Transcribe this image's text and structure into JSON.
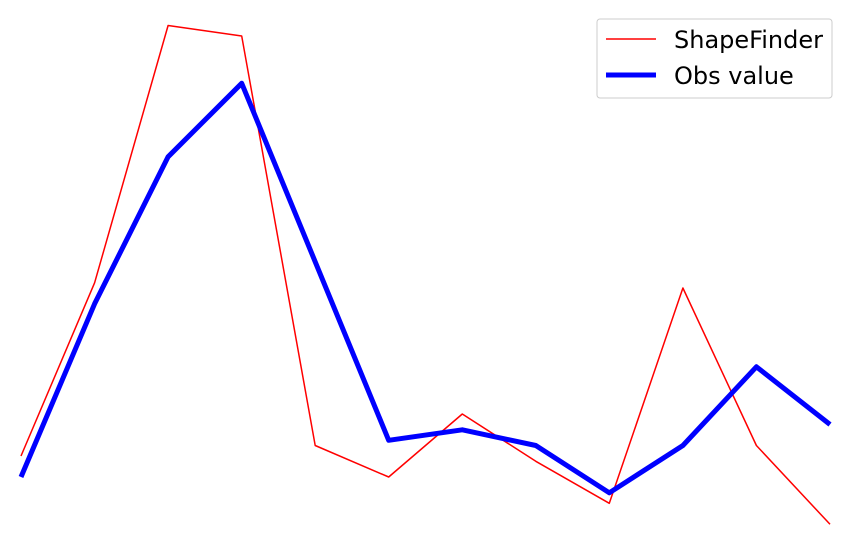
{
  "chart_data": {
    "type": "line",
    "title": "",
    "xlabel": "",
    "ylabel": "",
    "axes_visible": false,
    "grid": false,
    "legend_position": "top-right",
    "x": [
      0,
      1,
      2,
      3,
      4,
      5,
      6,
      7,
      8,
      9,
      10,
      11
    ],
    "xlim": [
      -0.15,
      11.15
    ],
    "ylim": [
      0.0,
      1.0
    ],
    "series": [
      {
        "name": "ShapeFinder",
        "color": "#ff0000",
        "style": "thin",
        "values": [
          0.16,
          0.49,
          0.98,
          0.96,
          0.18,
          0.12,
          0.24,
          0.15,
          0.07,
          0.48,
          0.18,
          0.03
        ]
      },
      {
        "name": "Obs value",
        "color": "#0000ff",
        "style": "thick",
        "values": [
          0.12,
          0.45,
          0.73,
          0.87,
          0.53,
          0.19,
          0.21,
          0.18,
          0.09,
          0.18,
          0.33,
          0.22
        ]
      }
    ]
  }
}
